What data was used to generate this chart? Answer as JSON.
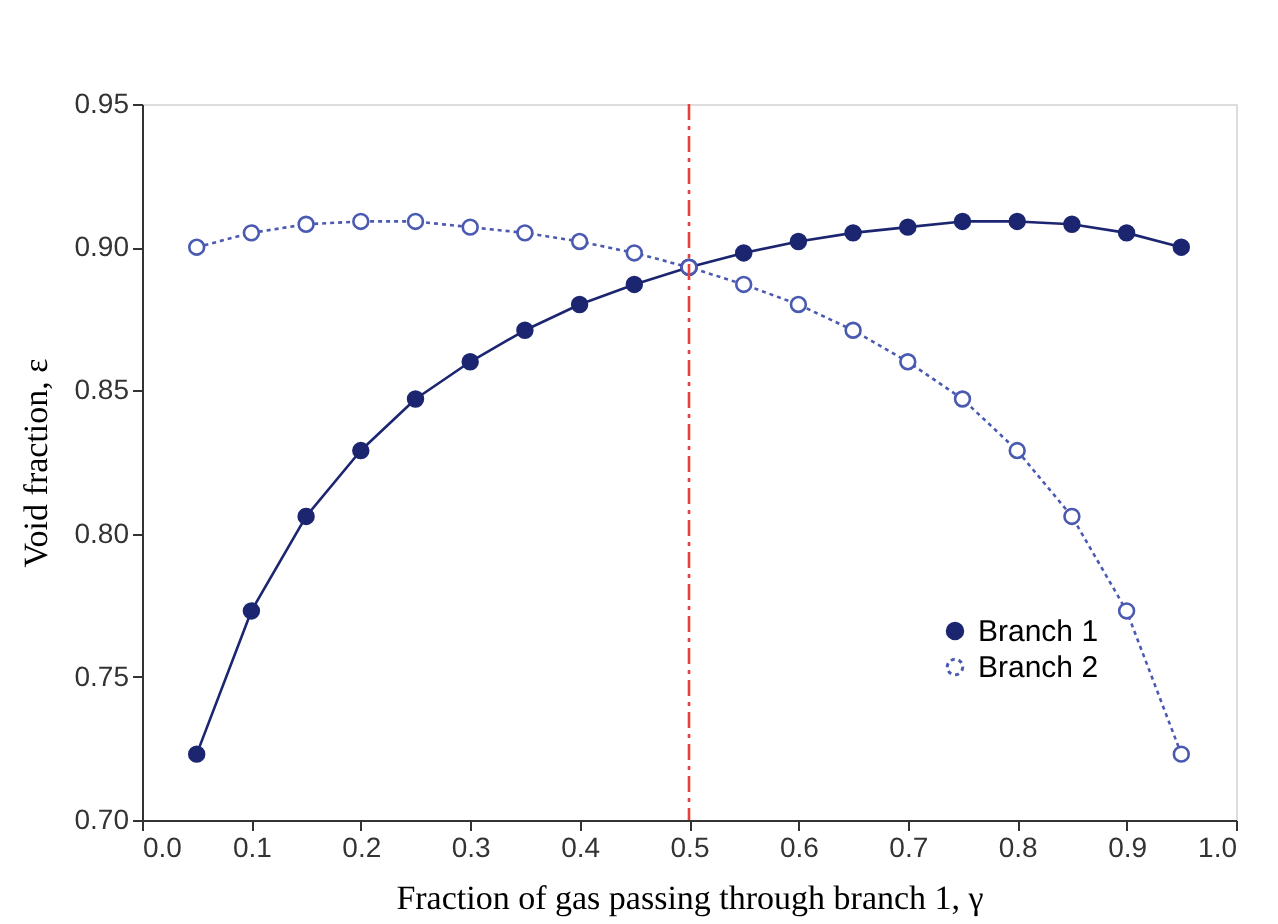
{
  "chart_data": {
    "type": "line",
    "xlabel": "Fraction of gas passing through branch 1, γ",
    "ylabel": "Void fraction, ε",
    "x": [
      0.05,
      0.1,
      0.15,
      0.2,
      0.25,
      0.3,
      0.35,
      0.4,
      0.45,
      0.5,
      0.55,
      0.6,
      0.65,
      0.7,
      0.75,
      0.8,
      0.85,
      0.9,
      0.95
    ],
    "series": [
      {
        "name": "Branch 1",
        "color": "#1c2570",
        "line_style": "solid",
        "marker": "circle",
        "values": [
          0.723,
          0.773,
          0.806,
          0.829,
          0.847,
          0.86,
          0.871,
          0.88,
          0.887,
          0.893,
          0.898,
          0.902,
          0.905,
          0.907,
          0.909,
          0.909,
          0.908,
          0.905,
          0.9
        ]
      },
      {
        "name": "Branch 2",
        "color": "#4a5ab0",
        "line_style": "dotted",
        "marker": "circle",
        "values": [
          0.9,
          0.905,
          0.908,
          0.909,
          0.909,
          0.907,
          0.905,
          0.902,
          0.898,
          0.893,
          0.887,
          0.88,
          0.871,
          0.86,
          0.847,
          0.829,
          0.806,
          0.773,
          0.723
        ]
      }
    ],
    "xlim": [
      0.0,
      1.0
    ],
    "xticks": [
      {
        "value": 0,
        "label": "0.0"
      },
      0.1,
      0.2,
      0.3,
      0.4,
      0.5,
      0.6,
      0.7,
      0.8,
      0.9,
      {
        "value": 1,
        "label": "1.0"
      }
    ],
    "ylim": [
      0.7,
      0.95
    ],
    "yticks": [
      {
        "value": 0.7,
        "label": "0.70"
      },
      0.75,
      {
        "value": 0.8,
        "label": "0.80"
      },
      0.85,
      {
        "value": 0.9,
        "label": "0.90"
      },
      0.95
    ],
    "ref_lines": [
      {
        "axis": "x",
        "value": 0.5,
        "color": "#e8413c",
        "line_style": "dashed"
      }
    ],
    "grid": false,
    "legend": "bottom right"
  }
}
